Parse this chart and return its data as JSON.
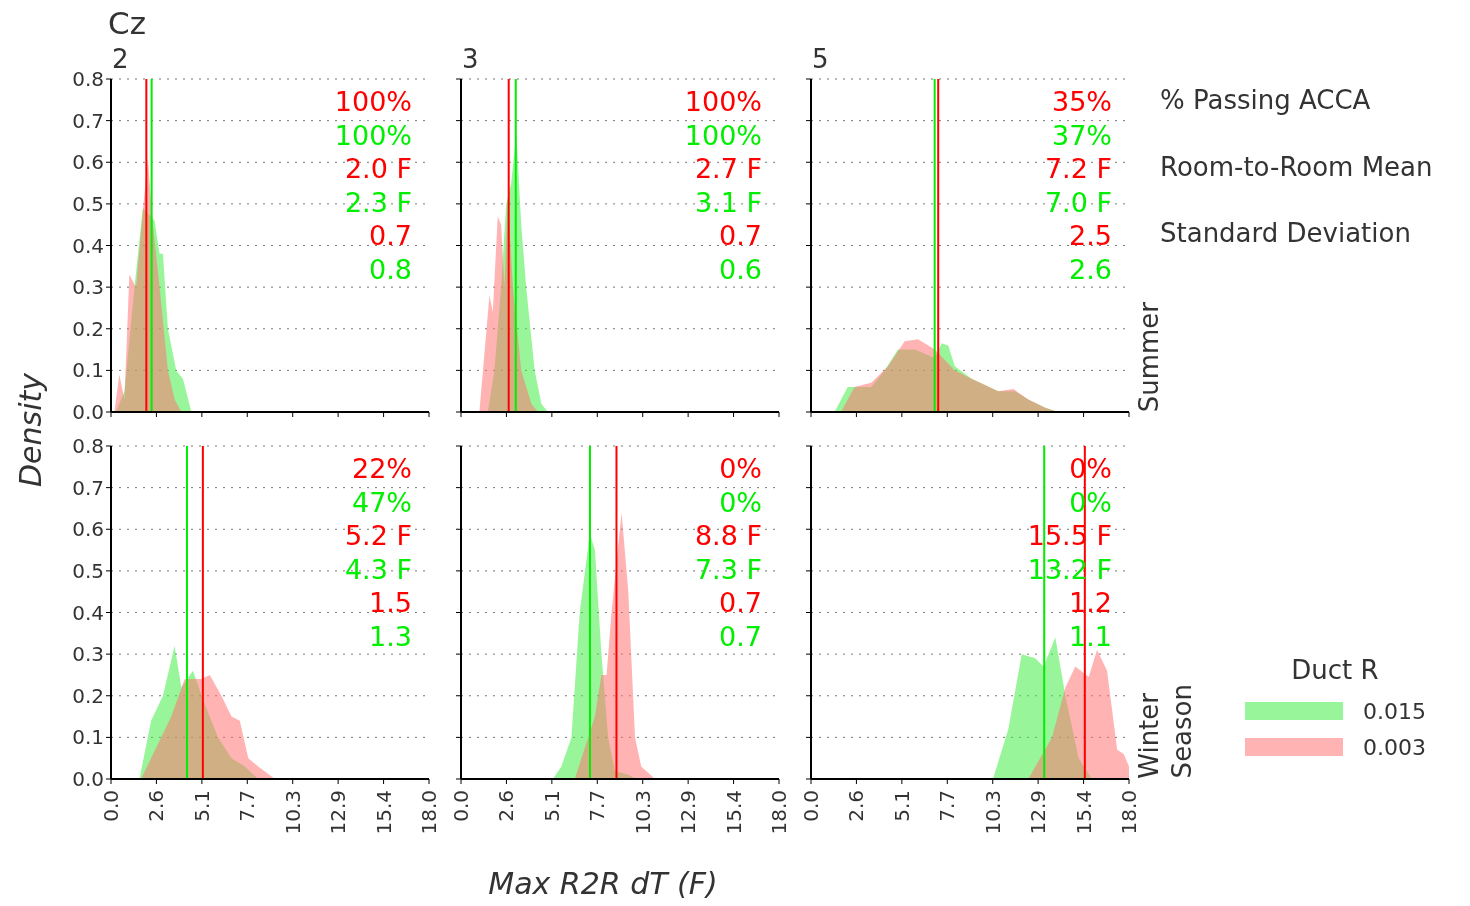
{
  "chart_data": [
    {
      "type": "area",
      "title": "2",
      "ylabel": "Density",
      "xlim": [
        0,
        18
      ],
      "ylim": [
        0,
        0.8
      ],
      "xticks": [
        {
          "value": 0,
          "label": null
        },
        {
          "value": 2.571,
          "label": null
        },
        {
          "value": 5.143,
          "label": null
        },
        {
          "value": 7.714,
          "label": null
        },
        {
          "value": 10.286,
          "label": null
        },
        {
          "value": 12.857,
          "label": null
        },
        {
          "value": 15.429,
          "label": null
        },
        {
          "value": 18,
          "label": null
        }
      ],
      "yticks": [
        {
          "value": 0,
          "label": "0.0"
        },
        {
          "value": 0.1,
          "label": "0.1"
        },
        {
          "value": 0.2,
          "label": "0.2"
        },
        {
          "value": 0.3,
          "label": "0.3"
        },
        {
          "value": 0.4,
          "label": "0.4"
        },
        {
          "value": 0.5,
          "label": "0.5"
        },
        {
          "value": 0.6,
          "label": "0.6"
        },
        {
          "value": 0.7,
          "label": "0.7"
        },
        {
          "value": 0.8,
          "label": "0.8"
        }
      ],
      "grid": "y",
      "tick_labels": "y",
      "series": [
        {
          "color": "#45ed45",
          "x": [
            0.28,
            0.76,
            1.33,
            1.8,
            2.46,
            2.75,
            2.94,
            3.22,
            3.69,
            4.07,
            4.55
          ],
          "values": [
            0,
            0.05,
            0.3,
            0.49,
            0.46,
            0.38,
            0.38,
            0.2,
            0.1,
            0.08,
            0
          ]
        },
        {
          "color": "#ff7575",
          "x": [
            0.19,
            0.47,
            0.76,
            1.04,
            1.42,
            1.8,
            2.08,
            2.37,
            2.75,
            3.22,
            3.6,
            3.98
          ],
          "values": [
            0,
            0.09,
            0.03,
            0.33,
            0.3,
            0.48,
            0.61,
            0.45,
            0.3,
            0.1,
            0.03,
            0
          ]
        }
      ],
      "ref_lines": [
        {
          "axis": "x",
          "value": 2.0,
          "color": "#ff0000"
        },
        {
          "axis": "x",
          "value": 2.3,
          "color": "#00ee00"
        }
      ],
      "annotations": [
        "100%",
        "100%",
        "2.0 F",
        "2.3 F",
        "0.7",
        "0.8"
      ]
    },
    {
      "type": "area",
      "title": "3",
      "xlim": [
        0,
        18
      ],
      "ylim": [
        0,
        0.8
      ],
      "xticks": [
        {
          "value": 0,
          "label": null
        },
        {
          "value": 2.571,
          "label": null
        },
        {
          "value": 5.143,
          "label": null
        },
        {
          "value": 7.714,
          "label": null
        },
        {
          "value": 10.286,
          "label": null
        },
        {
          "value": 12.857,
          "label": null
        },
        {
          "value": 15.429,
          "label": null
        },
        {
          "value": 18,
          "label": null
        }
      ],
      "yticks": [
        {
          "value": 0,
          "label": null
        },
        {
          "value": 0.1,
          "label": null
        },
        {
          "value": 0.2,
          "label": null
        },
        {
          "value": 0.3,
          "label": null
        },
        {
          "value": 0.4,
          "label": null
        },
        {
          "value": 0.5,
          "label": null
        },
        {
          "value": 0.6,
          "label": null
        },
        {
          "value": 0.7,
          "label": null
        },
        {
          "value": 0.8,
          "label": null
        }
      ],
      "grid": "y",
      "tick_labels": false,
      "series": [
        {
          "color": "#45ed45",
          "x": [
            1.52,
            1.89,
            2.27,
            2.56,
            2.84,
            3.13,
            3.41,
            3.69,
            4.17,
            4.55,
            4.92
          ],
          "values": [
            0,
            0.1,
            0.3,
            0.5,
            0.55,
            0.67,
            0.45,
            0.3,
            0.1,
            0.02,
            0
          ]
        },
        {
          "color": "#ff7575",
          "x": [
            1.04,
            1.61,
            1.8,
            2.08,
            2.27,
            2.46,
            2.65,
            2.94,
            3.41,
            3.98,
            4.36
          ],
          "values": [
            0,
            0.28,
            0.24,
            0.47,
            0.45,
            0.3,
            0.51,
            0.3,
            0.1,
            0.02,
            0
          ]
        }
      ],
      "ref_lines": [
        {
          "axis": "x",
          "value": 2.7,
          "color": "#ff0000"
        },
        {
          "axis": "x",
          "value": 3.1,
          "color": "#00ee00"
        }
      ],
      "annotations": [
        "100%",
        "100%",
        "2.7 F",
        "3.1 F",
        "0.7",
        "0.6"
      ]
    },
    {
      "type": "area",
      "title": "5",
      "y2label": "Summer",
      "xlim": [
        0,
        18
      ],
      "ylim": [
        0,
        0.8
      ],
      "xticks": [
        {
          "value": 0,
          "label": null
        },
        {
          "value": 2.571,
          "label": null
        },
        {
          "value": 5.143,
          "label": null
        },
        {
          "value": 7.714,
          "label": null
        },
        {
          "value": 10.286,
          "label": null
        },
        {
          "value": 12.857,
          "label": null
        },
        {
          "value": 15.429,
          "label": null
        },
        {
          "value": 18,
          "label": null
        }
      ],
      "yticks": [
        {
          "value": 0,
          "label": null
        },
        {
          "value": 0.1,
          "label": null
        },
        {
          "value": 0.2,
          "label": null
        },
        {
          "value": 0.3,
          "label": null
        },
        {
          "value": 0.4,
          "label": null
        },
        {
          "value": 0.5,
          "label": null
        },
        {
          "value": 0.6,
          "label": null
        },
        {
          "value": 0.7,
          "label": null
        },
        {
          "value": 0.8,
          "label": null
        }
      ],
      "grid": "y",
      "tick_labels": false,
      "series": [
        {
          "color": "#45ed45",
          "x": [
            1.33,
            2.08,
            2.65,
            3.41,
            4.17,
            4.92,
            5.87,
            7.01,
            7.39,
            7.77,
            8.14,
            9.09,
            10.6,
            11.55,
            12.3,
            13.26,
            14.0
          ],
          "values": [
            0,
            0.06,
            0.06,
            0.06,
            0.1,
            0.15,
            0.15,
            0.13,
            0.165,
            0.16,
            0.11,
            0.08,
            0.05,
            0.05,
            0.03,
            0.01,
            0
          ]
        },
        {
          "color": "#ff7575",
          "x": [
            1.7,
            2.46,
            3.41,
            4.36,
            5.3,
            6.06,
            7.01,
            8.14,
            9.09,
            10.6,
            11.46,
            12.3,
            13.26,
            14.0
          ],
          "values": [
            0,
            0.06,
            0.07,
            0.11,
            0.17,
            0.175,
            0.15,
            0.1,
            0.08,
            0.05,
            0.055,
            0.03,
            0.01,
            0
          ]
        }
      ],
      "ref_lines": [
        {
          "axis": "x",
          "value": 7.2,
          "color": "#ff0000"
        },
        {
          "axis": "x",
          "value": 7.0,
          "color": "#00ee00"
        }
      ],
      "annotations": [
        "35%",
        "37%",
        "7.2 F",
        "7.0 F",
        "2.5",
        "2.6"
      ]
    },
    {
      "type": "area",
      "xlim": [
        0,
        18
      ],
      "ylim": [
        0,
        0.8
      ],
      "xticks": [
        {
          "value": 0,
          "label": "0.0"
        },
        {
          "value": 2.571,
          "label": "2.6"
        },
        {
          "value": 5.143,
          "label": "5.1"
        },
        {
          "value": 7.714,
          "label": "7.7"
        },
        {
          "value": 10.286,
          "label": "10.3"
        },
        {
          "value": 12.857,
          "label": "12.9"
        },
        {
          "value": 15.429,
          "label": "15.4"
        },
        {
          "value": 18,
          "label": "18.0"
        }
      ],
      "yticks": [
        {
          "value": 0,
          "label": "0.0"
        },
        {
          "value": 0.1,
          "label": "0.1"
        },
        {
          "value": 0.2,
          "label": "0.2"
        },
        {
          "value": 0.3,
          "label": "0.3"
        },
        {
          "value": 0.4,
          "label": "0.4"
        },
        {
          "value": 0.5,
          "label": "0.5"
        },
        {
          "value": 0.6,
          "label": "0.6"
        },
        {
          "value": 0.7,
          "label": "0.7"
        },
        {
          "value": 0.8,
          "label": "0.8"
        }
      ],
      "grid": "y",
      "series": [
        {
          "color": "#45ed45",
          "x": [
            1.61,
            2.27,
            2.94,
            3.6,
            3.98,
            4.64,
            5.3,
            6.06,
            6.82,
            7.58,
            8.33
          ],
          "values": [
            0,
            0.14,
            0.2,
            0.32,
            0.22,
            0.26,
            0.18,
            0.1,
            0.05,
            0.03,
            0
          ]
        },
        {
          "color": "#ff7575",
          "x": [
            1.7,
            2.84,
            3.41,
            4.17,
            5.11,
            5.59,
            6.25,
            6.82,
            7.29,
            7.77,
            8.33,
            9.28
          ],
          "values": [
            0,
            0.1,
            0.15,
            0.24,
            0.24,
            0.25,
            0.2,
            0.15,
            0.14,
            0.05,
            0.03,
            0
          ]
        }
      ],
      "ref_lines": [
        {
          "axis": "x",
          "value": 5.2,
          "color": "#ff0000"
        },
        {
          "axis": "x",
          "value": 4.3,
          "color": "#00ee00"
        }
      ],
      "annotations": [
        "22%",
        "47%",
        "5.2 F",
        "4.3 F",
        "1.5",
        "1.3"
      ]
    },
    {
      "type": "area",
      "xlabel": "Max R2R dT (F)",
      "xlim": [
        0,
        18
      ],
      "ylim": [
        0,
        0.8
      ],
      "xticks": [
        {
          "value": 0,
          "label": "0.0"
        },
        {
          "value": 2.571,
          "label": "2.6"
        },
        {
          "value": 5.143,
          "label": "5.1"
        },
        {
          "value": 7.714,
          "label": "7.7"
        },
        {
          "value": 10.286,
          "label": "10.3"
        },
        {
          "value": 12.857,
          "label": "12.9"
        },
        {
          "value": 15.429,
          "label": "15.4"
        },
        {
          "value": 18,
          "label": "18.0"
        }
      ],
      "yticks": [
        {
          "value": 0,
          "label": null
        },
        {
          "value": 0.1,
          "label": null
        },
        {
          "value": 0.2,
          "label": null
        },
        {
          "value": 0.3,
          "label": null
        },
        {
          "value": 0.4,
          "label": null
        },
        {
          "value": 0.5,
          "label": null
        },
        {
          "value": 0.6,
          "label": null
        },
        {
          "value": 0.7,
          "label": null
        },
        {
          "value": 0.8,
          "label": null
        }
      ],
      "grid": "y",
      "tick_labels": "x",
      "series": [
        {
          "color": "#45ed45",
          "x": [
            5.2,
            5.68,
            6.25,
            6.72,
            7.29,
            7.58,
            7.95,
            8.33,
            8.71,
            9.47,
            9.94
          ],
          "values": [
            0,
            0.03,
            0.1,
            0.4,
            0.59,
            0.55,
            0.3,
            0.1,
            0.02,
            0.01,
            0
          ]
        },
        {
          "color": "#ff7575",
          "x": [
            6.44,
            7.58,
            7.95,
            8.24,
            8.52,
            9.09,
            9.47,
            9.85,
            10.2,
            10.98
          ],
          "values": [
            0,
            0.15,
            0.25,
            0.25,
            0.4,
            0.64,
            0.45,
            0.1,
            0.03,
            0
          ]
        }
      ],
      "ref_lines": [
        {
          "axis": "x",
          "value": 8.8,
          "color": "#ff0000"
        },
        {
          "axis": "x",
          "value": 7.3,
          "color": "#00ee00"
        }
      ],
      "annotations": [
        "0%",
        "0%",
        "8.8 F",
        "7.3 F",
        "0.7",
        "0.7"
      ]
    },
    {
      "type": "area",
      "y2label": "Winter",
      "legend": "right",
      "legend_title": "Duct R",
      "xlim": [
        0,
        18
      ],
      "ylim": [
        0,
        0.8
      ],
      "xticks": [
        {
          "value": 0,
          "label": "0.0"
        },
        {
          "value": 2.571,
          "label": "2.6"
        },
        {
          "value": 5.143,
          "label": "5.1"
        },
        {
          "value": 7.714,
          "label": "7.7"
        },
        {
          "value": 10.286,
          "label": "10.3"
        },
        {
          "value": 12.857,
          "label": "12.9"
        },
        {
          "value": 15.429,
          "label": "15.4"
        },
        {
          "value": 18,
          "label": "18.0"
        }
      ],
      "yticks": [
        {
          "value": 0,
          "label": null
        },
        {
          "value": 0.1,
          "label": null
        },
        {
          "value": 0.2,
          "label": null
        },
        {
          "value": 0.3,
          "label": null
        },
        {
          "value": 0.4,
          "label": null
        },
        {
          "value": 0.5,
          "label": null
        },
        {
          "value": 0.6,
          "label": null
        },
        {
          "value": 0.7,
          "label": null
        },
        {
          "value": 0.8,
          "label": null
        }
      ],
      "grid": "y",
      "tick_labels": "x",
      "series": [
        {
          "name": "0.015",
          "color": "#45ed45",
          "x": [
            10.3,
            11.17,
            11.93,
            12.69,
            13.16,
            13.83,
            14.4,
            15.15,
            15.9
          ],
          "values": [
            0,
            0.12,
            0.3,
            0.29,
            0.27,
            0.34,
            0.2,
            0.05,
            0
          ]
        },
        {
          "name": "0.003",
          "color": "#ff7575",
          "x": [
            12.3,
            13.64,
            14.4,
            14.96,
            15.72,
            16.19,
            16.76,
            17.33,
            17.7,
            18.0
          ],
          "values": [
            0,
            0.1,
            0.22,
            0.27,
            0.245,
            0.31,
            0.26,
            0.07,
            0.06,
            0.03
          ]
        }
      ],
      "ref_lines": [
        {
          "axis": "x",
          "value": 15.5,
          "color": "#ff0000"
        },
        {
          "axis": "x",
          "value": 13.2,
          "color": "#00ee00"
        }
      ],
      "annotations": [
        "0%",
        "0%",
        "15.5 F",
        "13.2 F",
        "1.2",
        "1.1"
      ]
    },
    {
      "type": "other",
      "annotations": [
        "Cz",
        "% Passing ACCA",
        "Room-to-Room Mean",
        "Standard Deviation",
        "Season"
      ]
    }
  ]
}
